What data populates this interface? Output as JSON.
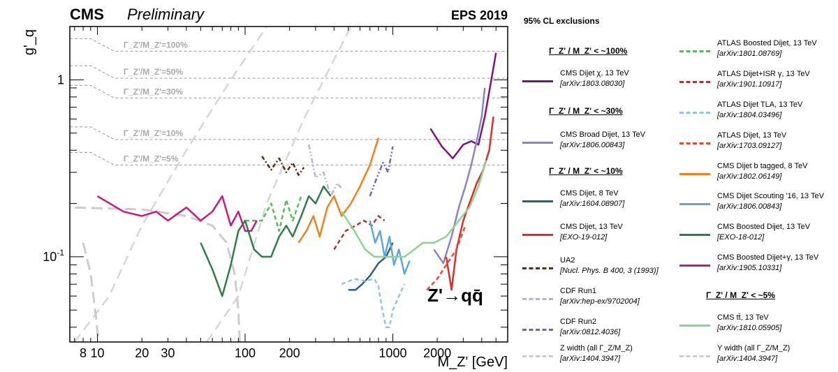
{
  "chart_data": {
    "type": "line",
    "header": {
      "experiment": "CMS",
      "status": "Preliminary",
      "conference": "EPS 2019"
    },
    "xlabel": "M_Z' [GeV]",
    "ylabel": "g'_q",
    "xscale": "log",
    "yscale": "log",
    "xlim": [
      6.5,
      6000
    ],
    "ylim": [
      0.033,
      2.0
    ],
    "x_ticklabels": [
      "8",
      "10",
      "20",
      "30",
      "100",
      "200",
      "1000",
      "2000"
    ],
    "x_tickvalues": [
      8,
      10,
      20,
      30,
      100,
      200,
      1000,
      2000
    ],
    "y_ticklabels": [
      "1",
      "10^-1"
    ],
    "y_tickvalues": [
      1,
      0.1
    ],
    "process_label": "Z'→qq̄",
    "width_labels": [
      {
        "text": "Γ_Z'/M_Z'=100%",
        "value": 1.45
      },
      {
        "text": "Γ_Z'/M_Z'=50%",
        "value": 1.02
      },
      {
        "text": "Γ_Z'/M_Z'=30%",
        "value": 0.79
      },
      {
        "text": "Γ_Z'/M_Z'=10%",
        "value": 0.46
      },
      {
        "text": "Γ_Z'/M_Z'=5%",
        "value": 0.33
      }
    ],
    "legend_title": "95% CL exclusions",
    "legend_groups": [
      {
        "label": "Γ_Z' / M_Z' < ~100%"
      },
      {
        "label": "Γ_Z' / M_Z' < ~30%"
      },
      {
        "label": "Γ_Z' / M_Z' < ~10%"
      },
      {
        "label": "Γ_Z' / M_Z' < ~5%"
      }
    ],
    "series": [
      {
        "name": "CMS Dijet χ, 13 TeV",
        "ref": "[arXiv:1803.08030]",
        "color": "#7b137f",
        "style": "solid",
        "x": [
          1800,
          2150,
          2550,
          3000,
          3400,
          3800,
          4200,
          4600,
          5000
        ],
        "y": [
          0.53,
          0.42,
          0.36,
          0.43,
          0.45,
          0.43,
          0.62,
          0.95,
          1.42
        ]
      },
      {
        "name": "CMS Broad Dijet, 13 TeV",
        "ref": "[arXiv:1806.00843]",
        "color": "#8b83c5",
        "style": "solid",
        "x": [
          1900,
          2200,
          2500,
          2800,
          3100,
          3400,
          3700,
          4000,
          4200
        ],
        "y": [
          0.11,
          0.092,
          0.13,
          0.19,
          0.25,
          0.33,
          0.45,
          0.62,
          0.9
        ]
      },
      {
        "name": "CMS Dijet, 8 TeV",
        "ref": "[arXiv:1604.08907]",
        "color": "#2d5d86",
        "style": "solid",
        "x": [
          500,
          560,
          620,
          700,
          800,
          900,
          1000
        ],
        "y": [
          0.065,
          0.065,
          0.07,
          0.078,
          0.092,
          0.1,
          0.12
        ]
      },
      {
        "name": "CMS Dijet, 13 TeV",
        "ref": "[EXO-19-012]",
        "color": "#d73027",
        "style": "solid",
        "x": [
          2300,
          2500,
          2700,
          3000,
          3300,
          3700,
          4100,
          4500,
          4800
        ],
        "y": [
          0.1,
          0.065,
          0.11,
          0.16,
          0.2,
          0.26,
          0.31,
          0.4,
          0.62
        ]
      },
      {
        "name": "UA2",
        "ref": "[Nucl. Phys. B 400, 3 (1993)]",
        "color": "#5a2d18",
        "style": "dashdot",
        "x": [
          130,
          150,
          170,
          190,
          210,
          230,
          250
        ],
        "y": [
          0.37,
          0.31,
          0.36,
          0.3,
          0.34,
          0.29,
          0.32
        ]
      },
      {
        "name": "CDF Run1",
        "ref": "[arXiv:hep-ex/9702004]",
        "color": "#b7b2d8",
        "style": "dashdotdot",
        "x": [
          270,
          300,
          340,
          380,
          420,
          460
        ],
        "y": [
          0.43,
          0.28,
          0.3,
          0.22,
          0.26,
          0.24
        ]
      },
      {
        "name": "CDF Run2",
        "ref": "[arXiv:0812.4036]",
        "color": "#6f65b8",
        "style": "dashdotdot",
        "x": [
          700,
          780,
          860,
          930,
          1000
        ],
        "y": [
          0.22,
          0.28,
          0.34,
          0.3,
          0.42
        ]
      },
      {
        "name": "Z width (all Γ_Z/M_Z)",
        "ref": "[arXiv:1404.3947]",
        "color": "#cccccc",
        "style": "longdash",
        "x": [
          7,
          20,
          40,
          60,
          75,
          85,
          90,
          92
        ],
        "y": [
          0.19,
          0.185,
          0.17,
          0.15,
          0.12,
          0.08,
          0.05,
          0.033
        ]
      },
      {
        "name": "ATLAS Boosted Dijet, 13 TeV",
        "ref": "[arXiv:1801.08769]",
        "color": "#5cb85c",
        "style": "dash",
        "x": [
          100,
          130,
          150,
          170,
          190,
          210,
          240
        ],
        "y": [
          0.16,
          0.16,
          0.2,
          0.14,
          0.21,
          0.16,
          0.22
        ]
      },
      {
        "name": "ATLAS Dijet+ISR γ, 13 TeV",
        "ref": "[arXiv:1901.10917]",
        "color": "#a33a3a",
        "style": "dash",
        "x": [
          400,
          480,
          560,
          640,
          720,
          800,
          880
        ],
        "y": [
          0.11,
          0.14,
          0.15,
          0.16,
          0.15,
          0.17,
          0.16
        ]
      },
      {
        "name": "ATLAS Dijet TLA, 13 TeV",
        "ref": "[arXiv:1804.03496]",
        "color": "#8ec5e6",
        "style": "dash",
        "x": [
          450,
          550,
          650,
          750,
          800,
          850,
          900,
          950,
          1000,
          1100,
          1200
        ],
        "y": [
          0.07,
          0.075,
          0.073,
          0.075,
          0.068,
          0.05,
          0.04,
          0.04,
          0.05,
          0.06,
          0.07
        ]
      },
      {
        "name": "ATLAS Dijet, 13 TeV",
        "ref": "[arXiv:1703.09127]",
        "color": "#e34a33",
        "style": "dash",
        "x": [
          1700,
          2000,
          2300,
          2700,
          3100
        ],
        "y": [
          0.065,
          0.075,
          0.09,
          0.11,
          0.15
        ]
      },
      {
        "name": "CMS Dijet b tagged, 8 TeV",
        "ref": "[arXiv:1802.06149]",
        "color": "#f07f1e",
        "style": "solid",
        "x": [
          230,
          260,
          290,
          320,
          360,
          400,
          450,
          520,
          600,
          700,
          800
        ],
        "y": [
          0.12,
          0.14,
          0.17,
          0.13,
          0.19,
          0.22,
          0.17,
          0.2,
          0.25,
          0.33,
          0.47
        ]
      },
      {
        "name": "CMS Dijet Scouting '16, 13 TeV",
        "ref": "[arXiv:1806.00843]",
        "color": "#5fa6d9",
        "style": "solid",
        "x": [
          700,
          760,
          820,
          880,
          950,
          1020,
          1100,
          1200,
          1300
        ],
        "y": [
          0.16,
          0.12,
          0.14,
          0.1,
          0.13,
          0.09,
          0.11,
          0.08,
          0.095
        ]
      },
      {
        "name": "CMS Boosted Dijet, 13 TeV",
        "ref": "[EXO-18-012]",
        "color": "#2e7d46",
        "style": "solid",
        "x": [
          50,
          60,
          70,
          80,
          90,
          100,
          115,
          130,
          150,
          170,
          190,
          210,
          240,
          270,
          300,
          340,
          380
        ],
        "y": [
          0.12,
          0.085,
          0.06,
          0.09,
          0.14,
          0.16,
          0.11,
          0.1,
          0.1,
          0.13,
          0.15,
          0.13,
          0.17,
          0.22,
          0.2,
          0.25,
          0.22
        ]
      },
      {
        "name": "CMS Boosted Dijet+γ, 13 TeV",
        "ref": "[arXiv:1905.10331]",
        "color": "#c51b7d",
        "style": "solid",
        "x": [
          10,
          15,
          20,
          25,
          30,
          40,
          50,
          60,
          70,
          80,
          90,
          100,
          110,
          120
        ],
        "y": [
          0.22,
          0.18,
          0.17,
          0.18,
          0.16,
          0.19,
          0.16,
          0.18,
          0.22,
          0.15,
          0.18,
          0.14,
          0.14,
          0.16
        ]
      },
      {
        "name": "CMS tt̄, 13 TeV",
        "ref": "[arXiv:1810.05905]",
        "color": "#8fd18f",
        "style": "solid",
        "x": [
          450,
          550,
          650,
          750,
          850,
          1000,
          1200,
          1400,
          1600,
          1900,
          2300,
          2800,
          3300,
          3800,
          4300
        ],
        "y": [
          0.18,
          0.14,
          0.11,
          0.1,
          0.1,
          0.1,
          0.1,
          0.11,
          0.12,
          0.12,
          0.13,
          0.16,
          0.19,
          0.25,
          0.35
        ]
      },
      {
        "name": "Υ width (all Γ_Z/M_Z)",
        "ref": "[arXiv:1404.3947]",
        "color": "#cccccc",
        "style": "longdash",
        "x": [
          8,
          9,
          9.5,
          9.8,
          10,
          10.2
        ],
        "y": [
          0.12,
          0.08,
          0.055,
          0.045,
          0.038,
          0.033
        ]
      }
    ]
  }
}
